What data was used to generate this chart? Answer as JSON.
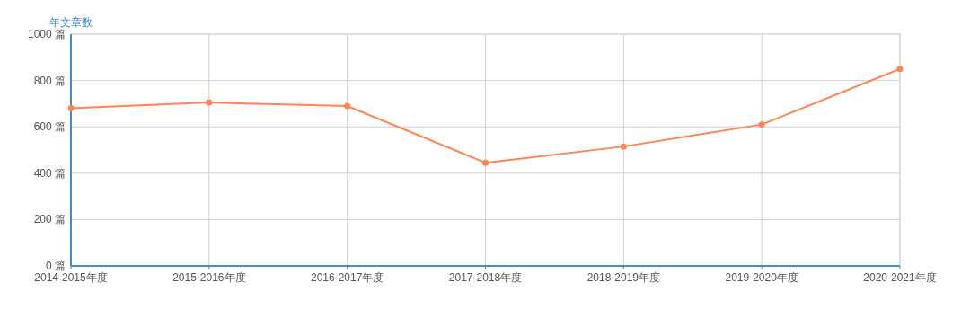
{
  "chart_data": {
    "type": "line",
    "ylabel": "年文章数",
    "categories": [
      "2014-2015年度",
      "2015-2016年度",
      "2016-2017年度",
      "2017-2018年度",
      "2018-2019年度",
      "2019-2020年度",
      "2020-2021年度"
    ],
    "series": [
      {
        "color": "#ff8552",
        "values": [
          680,
          705,
          690,
          445,
          515,
          610,
          850
        ]
      }
    ],
    "ylim": [
      0,
      1000
    ],
    "yticks": [
      {
        "value": 0,
        "label": "0 篇"
      },
      {
        "value": 200,
        "label": "200 篇"
      },
      {
        "value": 400,
        "label": "400 篇"
      },
      {
        "value": 600,
        "label": "600 篇"
      },
      {
        "value": 800,
        "label": "800 篇"
      },
      {
        "value": 1000,
        "label": "1000 篇"
      }
    ],
    "grid": true,
    "marker": "circle"
  }
}
